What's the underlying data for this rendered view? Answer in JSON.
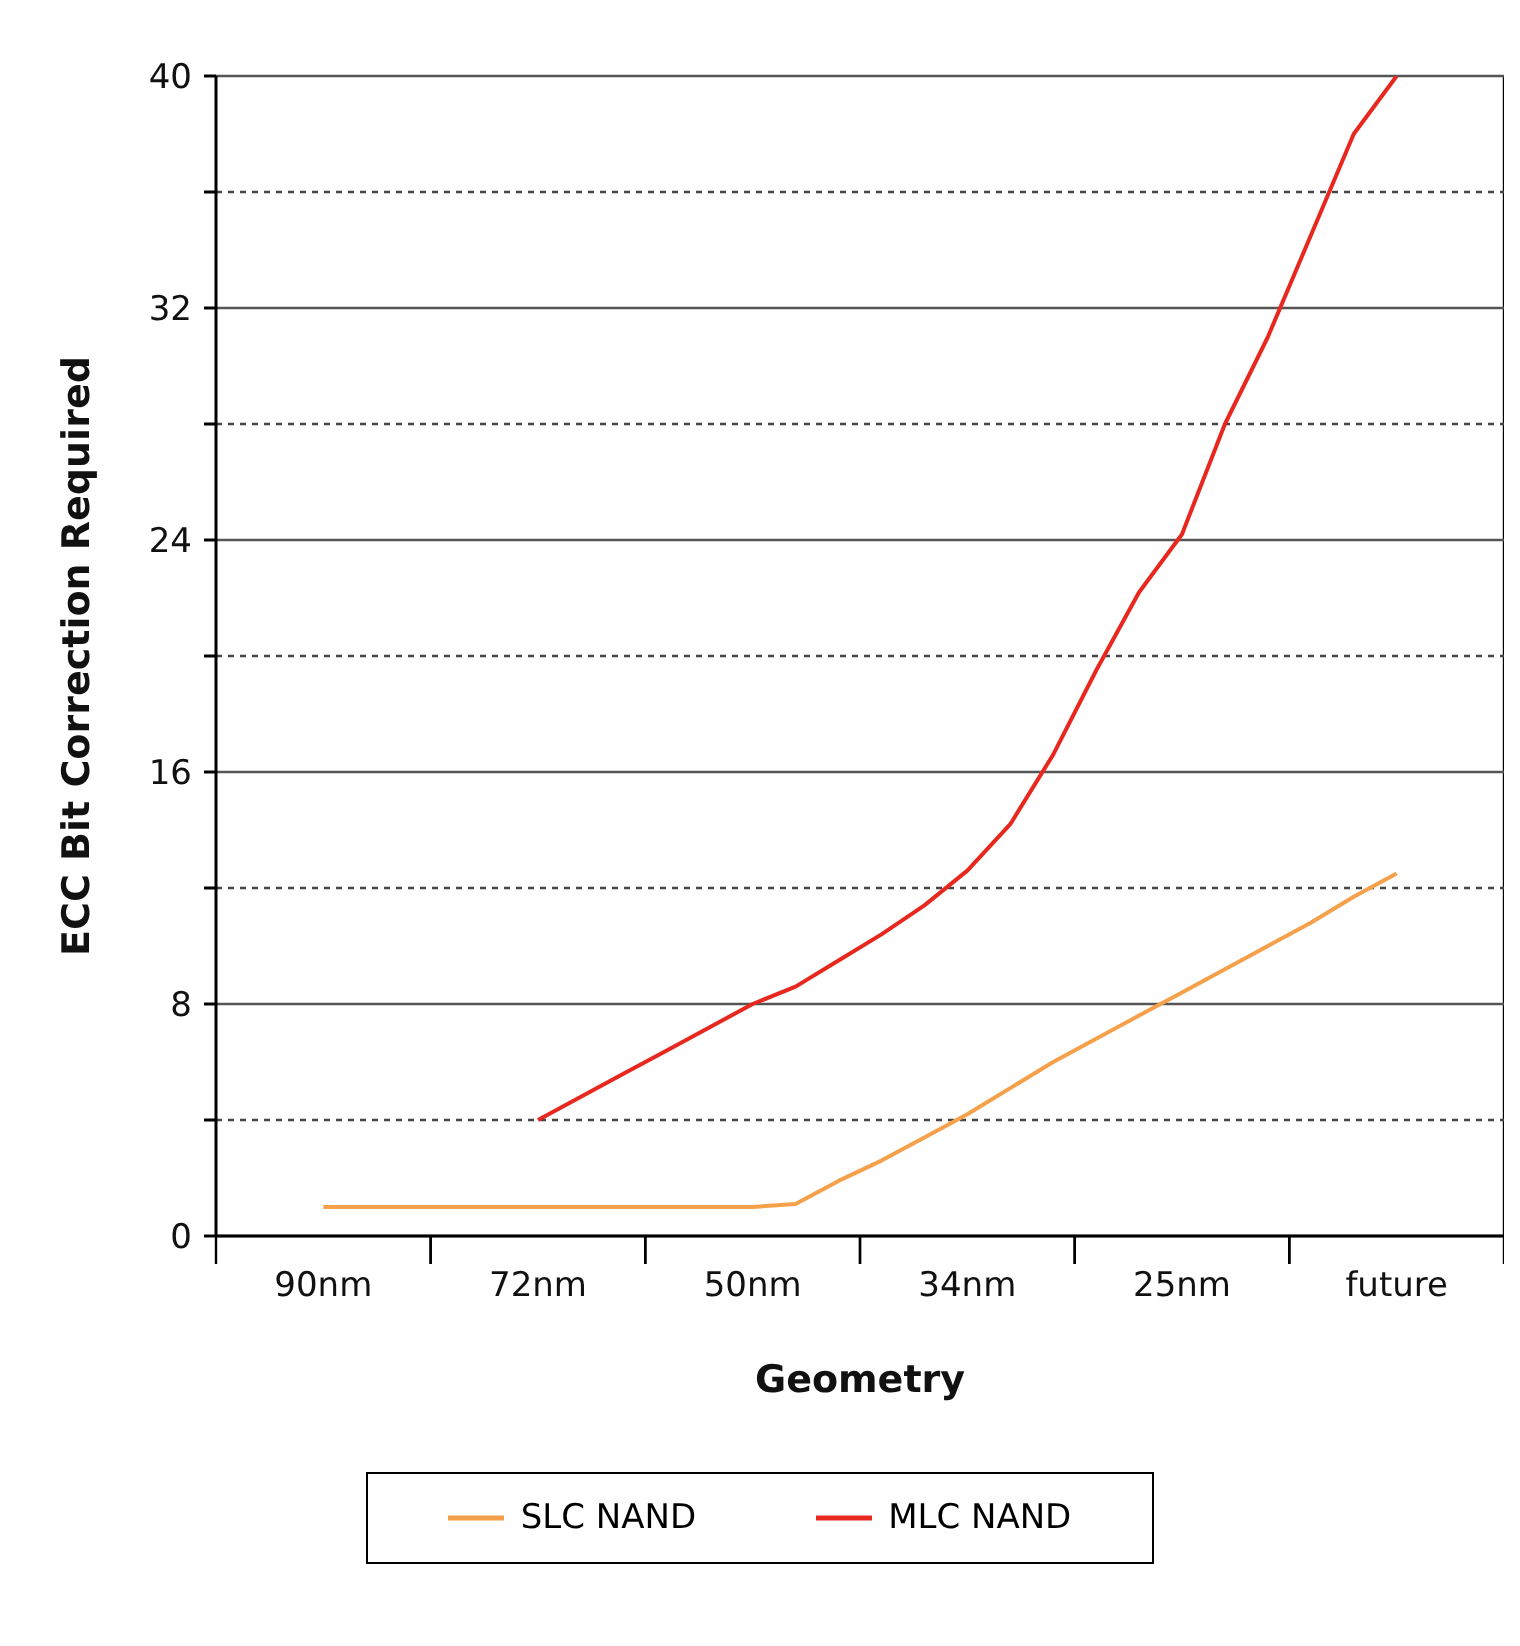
{
  "chart_data": {
    "type": "line",
    "xlabel": "Geometry",
    "ylabel": "ECC Bit Correction Required",
    "categories": [
      null,
      null,
      "90nm",
      null,
      null,
      null,
      null,
      "72nm",
      null,
      null,
      null,
      null,
      "50nm",
      null,
      null,
      null,
      null,
      "34nm",
      null,
      null,
      null,
      null,
      "25nm",
      null,
      null,
      null,
      null,
      "future",
      null,
      null
    ],
    "ylim": [
      0,
      40
    ],
    "yticks": [
      0,
      {
        "value": 4,
        "label": null
      },
      8,
      {
        "value": 12,
        "label": null
      },
      16,
      {
        "value": 20,
        "label": null
      },
      24,
      {
        "value": 28,
        "label": null
      },
      32,
      {
        "value": 36,
        "label": null
      },
      40
    ],
    "grid": "y",
    "legend": "bottom",
    "marker": "none",
    "line_style": "solid",
    "series": [
      {
        "name": "SLC NAND",
        "color": "#f5a04a",
        "values": [
          null,
          null,
          1,
          1,
          1,
          1,
          1,
          1,
          1,
          1,
          1,
          1,
          1,
          1.1,
          1.9,
          2.6,
          3.4,
          4.2,
          5.1,
          6,
          6.8,
          7.6,
          8.4,
          9.2,
          10,
          10.8,
          11.7,
          12.5,
          null,
          null
        ]
      },
      {
        "name": "MLC NAND",
        "color": "#e8281e",
        "values": [
          null,
          null,
          null,
          null,
          null,
          null,
          null,
          4,
          4.8,
          5.6,
          6.4,
          7.2,
          8,
          8.6,
          9.5,
          10.4,
          11.4,
          12.6,
          14.2,
          16.6,
          19.5,
          22.2,
          24.2,
          28,
          31,
          34.5,
          38,
          40,
          null,
          null
        ]
      }
    ]
  }
}
